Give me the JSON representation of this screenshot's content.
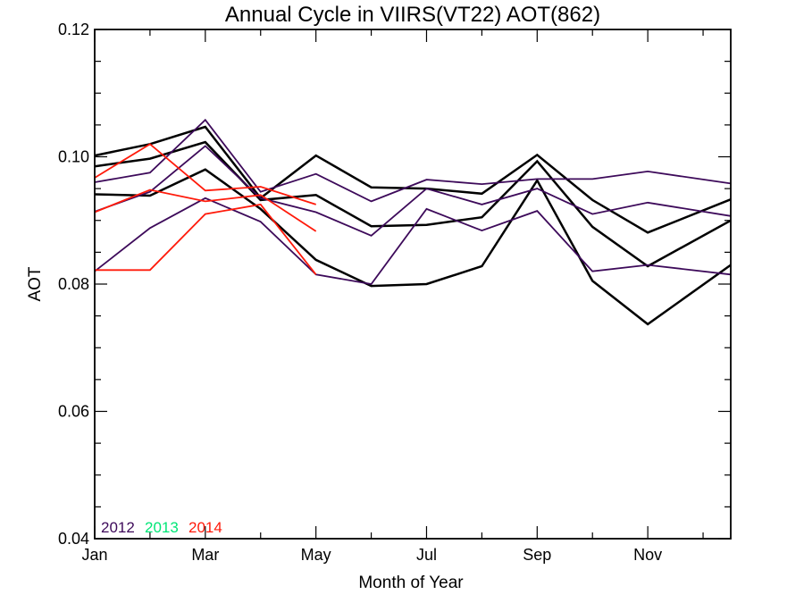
{
  "chart_data": {
    "type": "line",
    "title": "Annual Cycle in VIIRS(VT22) AOT(862)",
    "xlabel": "Month of Year",
    "ylabel": "AOT",
    "xlim": [
      1,
      12.5
    ],
    "ylim": [
      0.04,
      0.12
    ],
    "x_ticks": [
      1,
      3,
      5,
      7,
      9,
      11
    ],
    "x_tick_labels": [
      "Jan",
      "Mar",
      "May",
      "Jul",
      "Sep",
      "Nov"
    ],
    "x_minor_ticks": [
      2,
      4,
      6,
      8,
      10,
      12
    ],
    "y_ticks": [
      0.04,
      0.06,
      0.08,
      0.1,
      0.12
    ],
    "y_tick_labels": [
      "0.04",
      "0.06",
      "0.08",
      "0.10",
      "0.12"
    ],
    "y_minor_ticks": [
      0.045,
      0.05,
      0.055,
      0.065,
      0.07,
      0.075,
      0.085,
      0.09,
      0.095,
      0.105,
      0.11,
      0.115
    ],
    "grid": false,
    "legend": {
      "position": "bottom-left",
      "entries": [
        {
          "label": "2012",
          "color": "#3d0a5a"
        },
        {
          "label": "2013",
          "color": "#00e676"
        },
        {
          "label": "2014",
          "color": "#ff1a0a"
        }
      ]
    },
    "series": [
      {
        "color": "#000000",
        "width": 2.5,
        "x": [
          1,
          2,
          3,
          4,
          5,
          6,
          7,
          8,
          9,
          10,
          11,
          12.5
        ],
        "y": [
          0.1002,
          0.102,
          0.1047,
          0.0935,
          0.1002,
          0.0952,
          0.095,
          0.0942,
          0.1003,
          0.0932,
          0.0881,
          0.0933
        ]
      },
      {
        "color": "#000000",
        "width": 2.5,
        "x": [
          1,
          2,
          3,
          4,
          5,
          6,
          7,
          8,
          9,
          10,
          11,
          12.5
        ],
        "y": [
          0.0985,
          0.0997,
          0.1023,
          0.0932,
          0.094,
          0.0891,
          0.0893,
          0.0905,
          0.0993,
          0.089,
          0.0828,
          0.09
        ]
      },
      {
        "color": "#000000",
        "width": 2.5,
        "x": [
          1,
          2,
          3,
          4,
          5,
          6,
          7,
          8,
          9,
          10,
          11,
          12.5
        ],
        "y": [
          0.0941,
          0.0939,
          0.098,
          0.0918,
          0.0838,
          0.0797,
          0.08,
          0.0828,
          0.0963,
          0.0805,
          0.0737,
          0.083
        ]
      },
      {
        "color": "#3d0a5a",
        "width": 1.8,
        "x": [
          1,
          2,
          3,
          4,
          5,
          6,
          7,
          8,
          9,
          10,
          11,
          12.5
        ],
        "y": [
          0.096,
          0.0975,
          0.1058,
          0.0945,
          0.0973,
          0.093,
          0.0964,
          0.0957,
          0.0965,
          0.0965,
          0.0977,
          0.0958
        ]
      },
      {
        "color": "#3d0a5a",
        "width": 1.8,
        "x": [
          1,
          2,
          3,
          4,
          5,
          6,
          7,
          8,
          9,
          10,
          11,
          12.5
        ],
        "y": [
          0.0914,
          0.0945,
          0.1017,
          0.0935,
          0.0913,
          0.0876,
          0.095,
          0.0925,
          0.095,
          0.091,
          0.0928,
          0.0907
        ]
      },
      {
        "color": "#3d0a5a",
        "width": 1.8,
        "x": [
          1,
          2,
          3,
          4,
          5,
          6,
          7,
          8,
          9,
          10,
          11,
          12.5
        ],
        "y": [
          0.082,
          0.0888,
          0.0935,
          0.0898,
          0.0815,
          0.08,
          0.0918,
          0.0884,
          0.0915,
          0.082,
          0.083,
          0.0815
        ]
      },
      {
        "color": "#ff1a0a",
        "width": 1.8,
        "x": [
          1,
          2,
          3,
          4,
          5
        ],
        "y": [
          0.0967,
          0.102,
          0.0947,
          0.0953,
          0.0925
        ]
      },
      {
        "color": "#ff1a0a",
        "width": 1.8,
        "x": [
          1,
          2,
          3,
          4,
          5
        ],
        "y": [
          0.0913,
          0.0948,
          0.093,
          0.094,
          0.0883
        ]
      },
      {
        "color": "#ff1a0a",
        "width": 1.8,
        "x": [
          1,
          2,
          3,
          4,
          5
        ],
        "y": [
          0.0822,
          0.0822,
          0.091,
          0.0925,
          0.0815
        ]
      }
    ]
  }
}
